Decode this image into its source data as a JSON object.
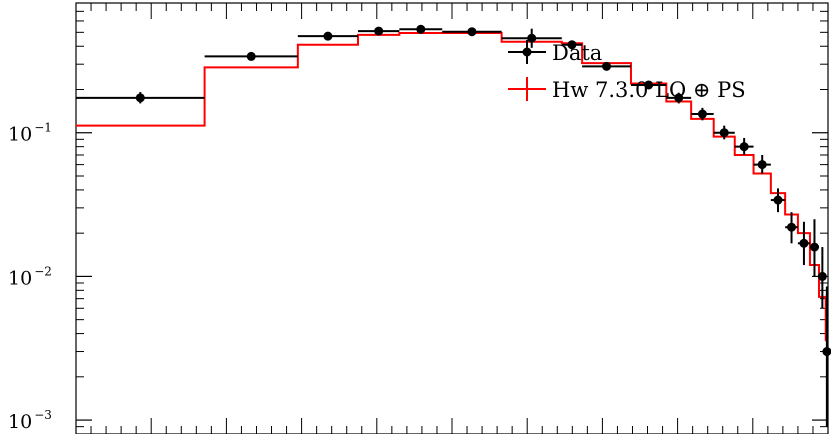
{
  "chart_data": {
    "type": "line",
    "title": "",
    "xlabel": "",
    "ylabel": "",
    "y_scale": "log",
    "ylim": [
      0.0008,
      0.8
    ],
    "xlim": [
      0,
      1
    ],
    "grid": false,
    "legend_position": "top-right",
    "y_ticks": [
      {
        "base": "10",
        "exp": "−1",
        "value": 0.1
      },
      {
        "base": "10",
        "exp": "−2",
        "value": 0.01
      },
      {
        "base": "10",
        "exp": "−3",
        "value": 0.001
      }
    ],
    "series": [
      {
        "name": "Data",
        "style": "points-with-errorbars",
        "color": "#000000",
        "points": [
          {
            "x0": 0.0,
            "x1": 0.171,
            "y": 0.175,
            "lo": 0.16,
            "hi": 0.192
          },
          {
            "x0": 0.171,
            "x1": 0.295,
            "y": 0.34,
            "lo": 0.328,
            "hi": 0.353
          },
          {
            "x0": 0.295,
            "x1": 0.375,
            "y": 0.47,
            "lo": 0.458,
            "hi": 0.483
          },
          {
            "x0": 0.375,
            "x1": 0.43,
            "y": 0.51,
            "lo": 0.498,
            "hi": 0.523
          },
          {
            "x0": 0.43,
            "x1": 0.487,
            "y": 0.525,
            "lo": 0.513,
            "hi": 0.538
          },
          {
            "x0": 0.487,
            "x1": 0.566,
            "y": 0.505,
            "lo": 0.493,
            "hi": 0.518
          },
          {
            "x0": 0.566,
            "x1": 0.646,
            "y": 0.455,
            "lo": 0.39,
            "hi": 0.53
          },
          {
            "x0": 0.646,
            "x1": 0.673,
            "y": 0.41,
            "lo": 0.395,
            "hi": 0.425
          },
          {
            "x0": 0.673,
            "x1": 0.738,
            "y": 0.29,
            "lo": 0.278,
            "hi": 0.302
          },
          {
            "x0": 0.738,
            "x1": 0.785,
            "y": 0.215,
            "lo": 0.204,
            "hi": 0.226
          },
          {
            "x0": 0.785,
            "x1": 0.818,
            "y": 0.175,
            "lo": 0.16,
            "hi": 0.19
          },
          {
            "x0": 0.818,
            "x1": 0.848,
            "y": 0.135,
            "lo": 0.122,
            "hi": 0.149
          },
          {
            "x0": 0.848,
            "x1": 0.876,
            "y": 0.1,
            "lo": 0.09,
            "hi": 0.112
          },
          {
            "x0": 0.876,
            "x1": 0.901,
            "y": 0.08,
            "lo": 0.07,
            "hi": 0.092
          },
          {
            "x0": 0.901,
            "x1": 0.924,
            "y": 0.06,
            "lo": 0.052,
            "hi": 0.07
          },
          {
            "x0": 0.924,
            "x1": 0.943,
            "y": 0.034,
            "lo": 0.028,
            "hi": 0.041
          },
          {
            "x0": 0.943,
            "x1": 0.96,
            "y": 0.022,
            "lo": 0.017,
            "hi": 0.028
          },
          {
            "x0": 0.96,
            "x1": 0.976,
            "y": 0.017,
            "lo": 0.012,
            "hi": 0.024
          },
          {
            "x0": 0.976,
            "x1": 0.988,
            "y": 0.016,
            "lo": 0.01,
            "hi": 0.025
          },
          {
            "x0": 0.988,
            "x1": 0.997,
            "y": 0.01,
            "lo": 0.006,
            "hi": 0.016
          },
          {
            "x0": 0.997,
            "x1": 1.0,
            "y": 0.003,
            "lo": 0.0009,
            "hi": 0.0085
          }
        ]
      },
      {
        "name": "Hw 7.3.0 LO ⊕ PS",
        "style": "step",
        "color": "#ff0000",
        "bins": [
          {
            "x0": 0.0,
            "x1": 0.171,
            "y": 0.112
          },
          {
            "x0": 0.171,
            "x1": 0.295,
            "y": 0.285
          },
          {
            "x0": 0.295,
            "x1": 0.375,
            "y": 0.41
          },
          {
            "x0": 0.375,
            "x1": 0.43,
            "y": 0.48
          },
          {
            "x0": 0.43,
            "x1": 0.487,
            "y": 0.495
          },
          {
            "x0": 0.487,
            "x1": 0.566,
            "y": 0.495
          },
          {
            "x0": 0.566,
            "x1": 0.646,
            "y": 0.43
          },
          {
            "x0": 0.646,
            "x1": 0.673,
            "y": 0.42
          },
          {
            "x0": 0.673,
            "x1": 0.738,
            "y": 0.305
          },
          {
            "x0": 0.738,
            "x1": 0.785,
            "y": 0.22
          },
          {
            "x0": 0.785,
            "x1": 0.818,
            "y": 0.165
          },
          {
            "x0": 0.818,
            "x1": 0.848,
            "y": 0.125
          },
          {
            "x0": 0.848,
            "x1": 0.876,
            "y": 0.094
          },
          {
            "x0": 0.876,
            "x1": 0.901,
            "y": 0.07
          },
          {
            "x0": 0.901,
            "x1": 0.924,
            "y": 0.052
          },
          {
            "x0": 0.924,
            "x1": 0.943,
            "y": 0.038
          },
          {
            "x0": 0.943,
            "x1": 0.96,
            "y": 0.027
          },
          {
            "x0": 0.96,
            "x1": 0.976,
            "y": 0.02
          },
          {
            "x0": 0.976,
            "x1": 0.988,
            "y": 0.012
          },
          {
            "x0": 0.988,
            "x1": 0.997,
            "y": 0.0072
          },
          {
            "x0": 0.997,
            "x1": 1.0,
            "y": 0.0036
          }
        ]
      }
    ]
  }
}
